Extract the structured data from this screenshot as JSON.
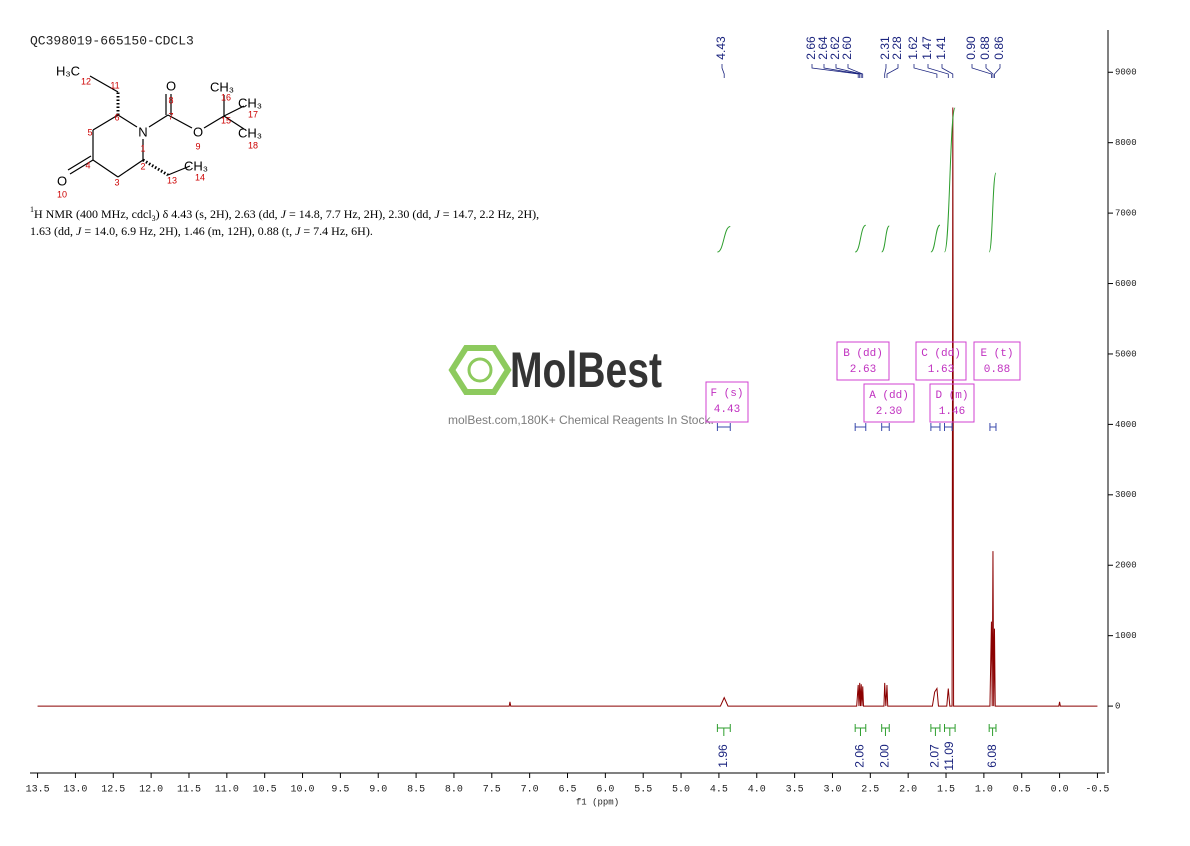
{
  "title": "QC398019-665150-CDCL3",
  "structure": {
    "atoms": [
      "H₃C",
      "O",
      "CH₃",
      "CH₃",
      "N",
      "O",
      "CH₃",
      "CH₃",
      "O"
    ],
    "numbers": [
      "12",
      "11",
      "8",
      "7",
      "16",
      "15",
      "17",
      "18",
      "5",
      "6",
      "1",
      "9",
      "4",
      "2",
      "3",
      "13",
      "14",
      "10"
    ]
  },
  "description": [
    [
      {
        "text": "1",
        "style": "sup"
      },
      {
        "text": "H NMR (400 MHz, cdcl"
      },
      {
        "text": "3",
        "style": "sub"
      },
      {
        "text": ") δ 4.43 (s, 2H), 2.63 (dd, "
      },
      {
        "text": "J",
        "style": "i"
      },
      {
        "text": " = 14.8, 7.7 Hz, 2H), 2.30 (dd, "
      },
      {
        "text": "J",
        "style": "i"
      },
      {
        "text": " = 14.7, 2.2 Hz, 2H),"
      }
    ],
    [
      {
        "text": "1.63 (dd, "
      },
      {
        "text": "J",
        "style": "i"
      },
      {
        "text": " = 14.0, 6.9 Hz, 2H), 1.46 (m, 12H), 0.88 (t, "
      },
      {
        "text": "J",
        "style": "i"
      },
      {
        "text": " = 7.4 Hz, 6H)."
      }
    ]
  ],
  "watermark": {
    "logo": "MolBest",
    "tagline": "molBest.com,180K+ Chemical Reagents In Stock."
  },
  "chart_data": {
    "type": "line",
    "xlabel": "f1 (ppm)",
    "color": "#8b0000",
    "x": [
      13.5,
      7.27,
      7.26,
      7.25,
      4.48,
      4.43,
      4.38,
      2.68,
      2.66,
      2.65,
      2.64,
      2.63,
      2.62,
      2.61,
      2.6,
      2.59,
      2.32,
      2.31,
      2.295,
      2.28,
      2.27,
      1.68,
      1.65,
      1.62,
      1.6,
      1.49,
      1.47,
      1.45,
      1.42,
      1.41,
      1.4,
      0.92,
      0.9,
      0.89,
      0.88,
      0.87,
      0.86,
      0.85,
      0.01,
      0,
      -0.01,
      -0.5
    ],
    "values": [
      0,
      0,
      60,
      0,
      0,
      120,
      0,
      0,
      300,
      0,
      330,
      0,
      310,
      0,
      280,
      0,
      0,
      330,
      0,
      300,
      0,
      0,
      200,
      250,
      0,
      0,
      250,
      0,
      0,
      8500,
      0,
      0,
      1200,
      0,
      2200,
      0,
      1100,
      0,
      0,
      60,
      0,
      0
    ],
    "xlim": [
      13.6,
      -0.6
    ],
    "ylim": [
      -950,
      9600
    ],
    "xticks": [
      13.5,
      {
        "value": 13,
        "label": "13.0"
      },
      12.5,
      {
        "value": 12,
        "label": "12.0"
      },
      11.5,
      {
        "value": 11,
        "label": "11.0"
      },
      10.5,
      {
        "value": 10,
        "label": "10.0"
      },
      9.5,
      {
        "value": 9,
        "label": "9.0"
      },
      8.5,
      {
        "value": 8,
        "label": "8.0"
      },
      7.5,
      {
        "value": 7,
        "label": "7.0"
      },
      6.5,
      {
        "value": 6,
        "label": "6.0"
      },
      5.5,
      {
        "value": 5,
        "label": "5.0"
      },
      4.5,
      {
        "value": 4,
        "label": "4.0"
      },
      3.5,
      {
        "value": 3,
        "label": "3.0"
      },
      2.5,
      {
        "value": 2,
        "label": "2.0"
      },
      1.5,
      {
        "value": 1,
        "label": "1.0"
      },
      0.5,
      {
        "value": 0,
        "label": "0.0"
      },
      -0.5
    ],
    "yticks": [
      0,
      1000,
      2000,
      3000,
      4000,
      5000,
      6000,
      7000,
      8000,
      9000
    ],
    "peaks": [
      4.43,
      2.66,
      2.64,
      2.62,
      {
        "value": 2.6,
        "label": "2.60"
      },
      2.31,
      2.28,
      1.62,
      1.47,
      1.41,
      {
        "value": 0.9,
        "label": "0.90"
      },
      0.88,
      0.86
    ],
    "multiplets": [
      {
        "label": "F (s)",
        "shift": 4.43,
        "range": [
          4.52,
          4.35
        ]
      },
      {
        "label": "B (dd)",
        "shift": 2.63,
        "range": [
          2.7,
          2.56
        ]
      },
      {
        "label": "A (dd)",
        "shift": {
          "value": 2.3,
          "label": "2.30"
        },
        "range": [
          2.35,
          2.25
        ]
      },
      {
        "label": "C (dd)",
        "shift": 1.63,
        "range": [
          1.7,
          1.58
        ]
      },
      {
        "label": "D (m)",
        "shift": 1.46,
        "range": [
          1.52,
          1.42
        ]
      },
      {
        "label": "E (t)",
        "shift": 0.88,
        "range": [
          0.92,
          0.84
        ]
      }
    ],
    "integrals": [
      {
        "range": [
          4.52,
          4.35
        ],
        "value": 1.96
      },
      {
        "range": [
          2.7,
          2.56
        ],
        "value": 2.06
      },
      {
        "range": [
          2.35,
          2.25
        ],
        "value": {
          "value": 2,
          "label": "2.00"
        }
      },
      {
        "range": [
          1.7,
          1.58
        ],
        "value": 2.07
      },
      {
        "range": [
          1.52,
          1.38
        ],
        "value": 11.09
      },
      {
        "range": [
          0.93,
          0.84
        ],
        "value": 6.08
      }
    ]
  }
}
